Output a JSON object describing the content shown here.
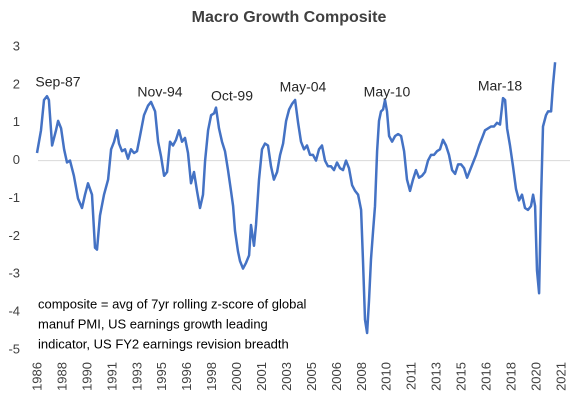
{
  "chart_data": {
    "type": "line",
    "title": "Macro Growth Composite",
    "annotations": [
      "Sep-87",
      "Nov-94",
      "Oct-99",
      "May-04",
      "May-10",
      "Mar-18"
    ],
    "note": [
      "composite = avg of 7yr rolling z-score of global",
      "manuf PMI, US earnings growth leading",
      "indicator, US FY2 earnings revision breadth"
    ],
    "color": "#4472c4",
    "zero_line": true,
    "xlim": [
      1986.4,
      2021.4
    ],
    "ylim": [
      -5,
      3
    ],
    "yticks": [
      -5,
      -4,
      -3,
      -2,
      -1,
      0,
      1,
      2,
      3
    ],
    "xticks": [
      {
        "value": 1986.4,
        "label": "1986"
      },
      {
        "value": 1988.07,
        "label": "1988"
      },
      {
        "value": 1989.73,
        "label": "1990"
      },
      {
        "value": 1991.4,
        "label": "1991"
      },
      {
        "value": 1993.07,
        "label": "1993"
      },
      {
        "value": 1994.73,
        "label": "1995"
      },
      {
        "value": 1996.4,
        "label": "1996"
      },
      {
        "value": 1998.07,
        "label": "1998"
      },
      {
        "value": 1999.73,
        "label": "2000"
      },
      {
        "value": 2001.4,
        "label": "2001"
      },
      {
        "value": 2003.07,
        "label": "2003"
      },
      {
        "value": 2004.73,
        "label": "2005"
      },
      {
        "value": 2006.4,
        "label": "2006"
      },
      {
        "value": 2008.07,
        "label": "2008"
      },
      {
        "value": 2009.73,
        "label": "2010"
      },
      {
        "value": 2011.4,
        "label": "2011"
      },
      {
        "value": 2013.07,
        "label": "2013"
      },
      {
        "value": 2014.73,
        "label": "2015"
      },
      {
        "value": 2016.4,
        "label": "2016"
      },
      {
        "value": 2018.07,
        "label": "2018"
      },
      {
        "value": 2019.73,
        "label": "2020"
      },
      {
        "value": 2021.4,
        "label": "2021"
      }
    ],
    "x": [
      1986.33,
      1986.6,
      1986.8,
      1987.0,
      1987.13,
      1987.34,
      1987.6,
      1987.74,
      1987.94,
      1988.14,
      1988.34,
      1988.54,
      1988.8,
      1989.07,
      1989.34,
      1989.54,
      1989.74,
      1990.01,
      1990.21,
      1990.34,
      1990.54,
      1990.81,
      1991.08,
      1991.28,
      1991.48,
      1991.68,
      1991.81,
      1992.01,
      1992.21,
      1992.41,
      1992.61,
      1992.81,
      1993.01,
      1993.21,
      1993.48,
      1993.75,
      1993.95,
      1994.22,
      1994.42,
      1994.62,
      1994.82,
      1995.02,
      1995.22,
      1995.42,
      1995.62,
      1995.82,
      1996.02,
      1996.22,
      1996.42,
      1996.62,
      1996.82,
      1997.02,
      1997.22,
      1997.42,
      1997.56,
      1997.76,
      1997.96,
      1998.16,
      1998.29,
      1998.49,
      1998.69,
      1998.89,
      1999.09,
      1999.29,
      1999.43,
      1999.56,
      1999.76,
      1999.89,
      2000.09,
      2000.29,
      2000.5,
      2000.63,
      2000.83,
      2000.96,
      2001.16,
      2001.36,
      2001.56,
      2001.76,
      2001.96,
      2002.16,
      2002.37,
      2002.57,
      2002.77,
      2002.97,
      2003.17,
      2003.37,
      2003.57,
      2003.77,
      2003.97,
      2004.17,
      2004.37,
      2004.57,
      2004.77,
      2004.97,
      2005.17,
      2005.37,
      2005.57,
      2005.77,
      2005.97,
      2006.17,
      2006.37,
      2006.57,
      2006.77,
      2006.97,
      2007.17,
      2007.38,
      2007.58,
      2007.78,
      2007.98,
      2008.11,
      2008.24,
      2008.38,
      2008.51,
      2008.64,
      2008.78,
      2008.91,
      2009.05,
      2009.18,
      2009.31,
      2009.45,
      2009.58,
      2009.71,
      2009.85,
      2010.05,
      2010.25,
      2010.45,
      2010.65,
      2010.85,
      2011.05,
      2011.25,
      2011.45,
      2011.65,
      2011.85,
      2012.05,
      2012.25,
      2012.45,
      2012.65,
      2012.85,
      2013.05,
      2013.25,
      2013.45,
      2013.65,
      2013.85,
      2014.06,
      2014.26,
      2014.46,
      2014.66,
      2014.86,
      2015.06,
      2015.26,
      2015.46,
      2015.66,
      2015.86,
      2016.06,
      2016.26,
      2016.46,
      2016.66,
      2016.86,
      2017.06,
      2017.26,
      2017.46,
      2017.6,
      2017.73,
      2017.93,
      2018.13,
      2018.33,
      2018.53,
      2018.73,
      2018.93,
      2019.13,
      2019.33,
      2019.47,
      2019.6,
      2019.73,
      2019.87,
      2020.0,
      2020.13,
      2020.33,
      2020.47,
      2020.67,
      2020.8,
      2020.94
    ],
    "values": [
      0.2,
      0.8,
      1.6,
      1.7,
      1.6,
      0.4,
      0.8,
      1.05,
      0.85,
      0.3,
      -0.05,
      0.0,
      -0.4,
      -1.0,
      -1.25,
      -0.9,
      -0.6,
      -0.9,
      -2.3,
      -2.35,
      -1.45,
      -0.9,
      -0.5,
      0.3,
      0.5,
      0.8,
      0.45,
      0.25,
      0.3,
      0.05,
      0.3,
      0.2,
      0.25,
      0.65,
      1.2,
      1.45,
      1.55,
      1.3,
      0.5,
      0.1,
      -0.4,
      -0.3,
      0.5,
      0.4,
      0.55,
      0.8,
      0.5,
      0.6,
      0.2,
      -0.6,
      -0.3,
      -0.8,
      -1.25,
      -0.9,
      0.0,
      0.8,
      1.2,
      1.25,
      1.4,
      0.85,
      0.5,
      0.25,
      -0.25,
      -0.8,
      -1.2,
      -1.85,
      -2.4,
      -2.65,
      -2.85,
      -2.7,
      -2.5,
      -1.7,
      -2.25,
      -1.7,
      -0.5,
      0.3,
      0.45,
      0.4,
      -0.15,
      -0.5,
      -0.3,
      0.15,
      0.45,
      1.05,
      1.35,
      1.5,
      1.6,
      1.0,
      0.5,
      0.3,
      0.4,
      0.15,
      0.15,
      0.0,
      0.3,
      0.4,
      0.0,
      -0.15,
      -0.15,
      -0.25,
      -0.05,
      -0.2,
      -0.25,
      0.0,
      -0.2,
      -0.65,
      -0.8,
      -0.9,
      -1.3,
      -2.65,
      -4.2,
      -4.55,
      -3.7,
      -2.6,
      -1.85,
      -1.2,
      0.25,
      1.05,
      1.3,
      1.35,
      1.6,
      1.3,
      0.65,
      0.5,
      0.65,
      0.7,
      0.65,
      0.25,
      -0.5,
      -0.8,
      -0.5,
      -0.25,
      -0.45,
      -0.4,
      -0.3,
      0.0,
      0.15,
      0.15,
      0.25,
      0.3,
      0.55,
      0.4,
      0.15,
      -0.25,
      -0.35,
      -0.1,
      -0.1,
      -0.2,
      -0.45,
      -0.25,
      -0.05,
      0.15,
      0.4,
      0.6,
      0.8,
      0.85,
      0.9,
      0.9,
      1.0,
      0.95,
      1.65,
      1.6,
      0.85,
      0.4,
      -0.15,
      -0.75,
      -1.05,
      -0.9,
      -1.25,
      -1.3,
      -1.2,
      -0.9,
      -1.2,
      -2.9,
      -3.5,
      -1.05,
      0.9,
      1.2,
      1.3,
      1.3,
      2.0,
      2.6
    ]
  }
}
